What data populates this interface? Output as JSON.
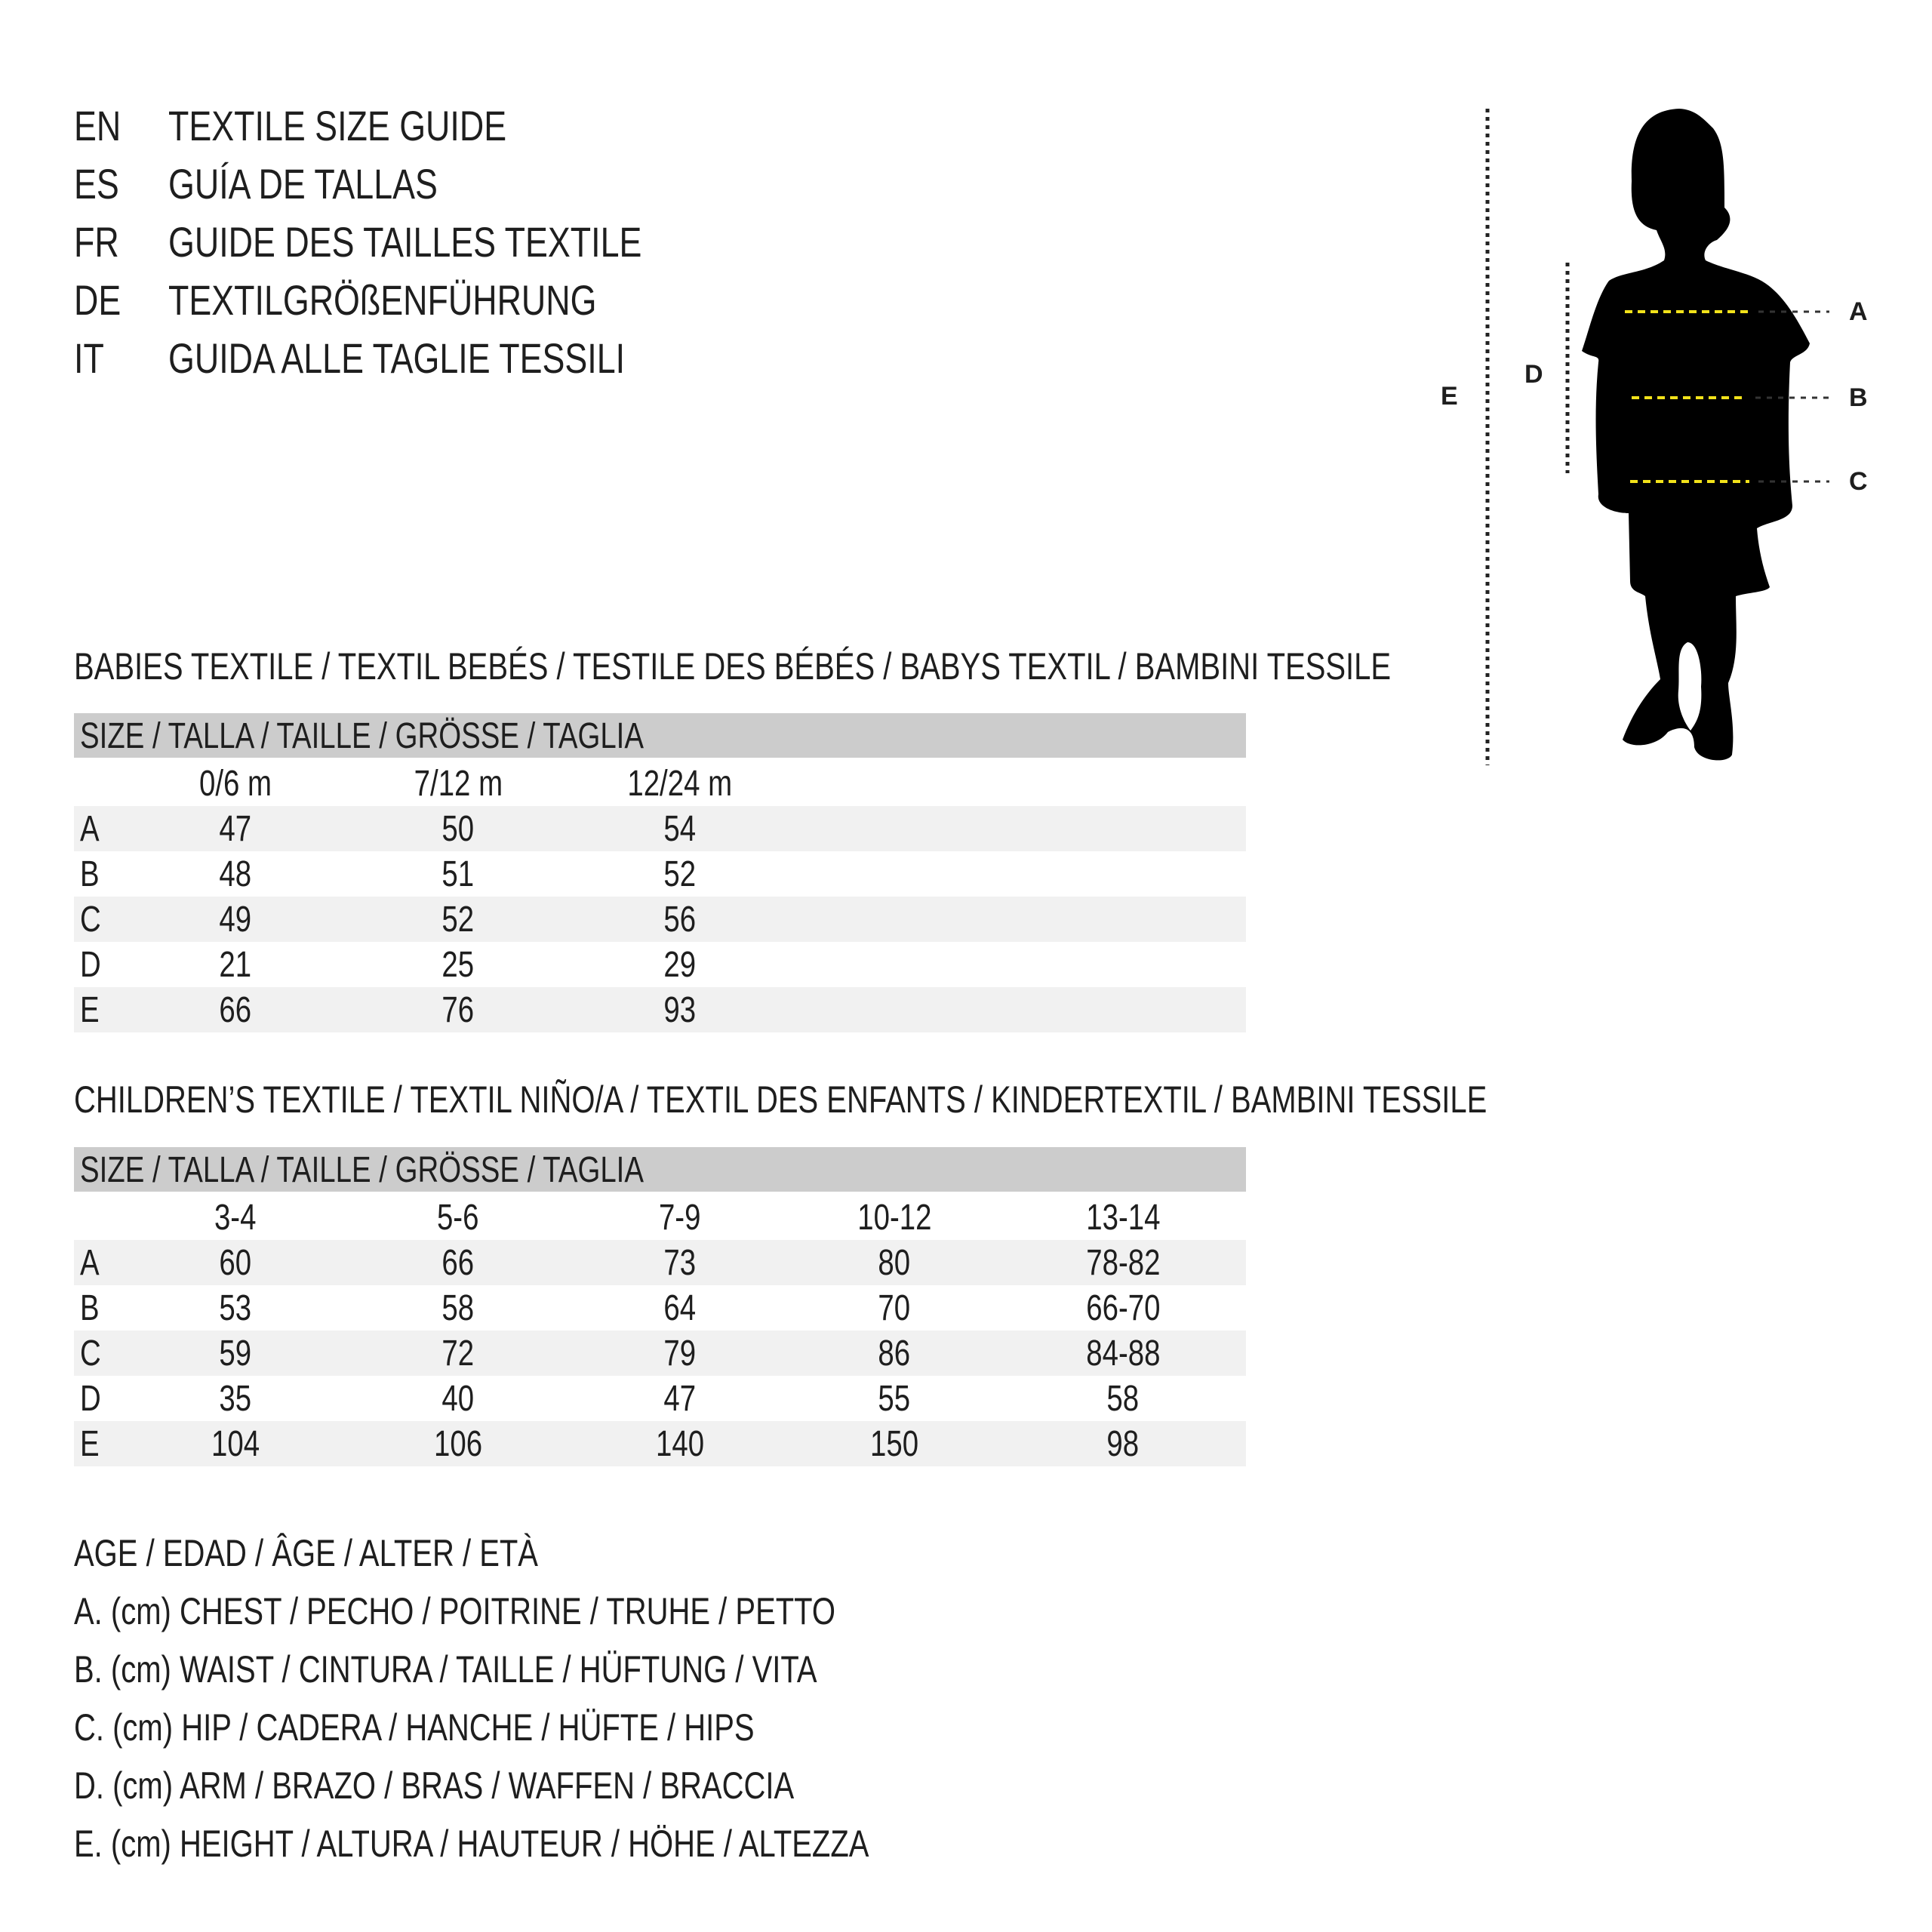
{
  "titles": [
    {
      "code": "EN",
      "text": "TEXTILE SIZE GUIDE"
    },
    {
      "code": "ES",
      "text": "GUÍA DE TALLAS"
    },
    {
      "code": "FR",
      "text": "GUIDE DES TAILLES TEXTILE"
    },
    {
      "code": "DE",
      "text": "TEXTILGRÖßENFÜHRUNG"
    },
    {
      "code": "IT",
      "text": "GUIDA ALLE TAGLIE TESSILI"
    }
  ],
  "babies": {
    "heading": "BABIES TEXTILE / TEXTIL BEBÉS / TESTILE DES BÉBÉS / BABYS TEXTIL / BAMBINI TESSILE",
    "size_header": "SIZE / TALLA / TAILLE / GRÖSSE / TAGLIA",
    "columns": [
      "0/6 m",
      "7/12 m",
      "12/24 m"
    ],
    "rows": [
      {
        "label": "A",
        "values": [
          "47",
          "50",
          "54"
        ]
      },
      {
        "label": "B",
        "values": [
          "48",
          "51",
          "52"
        ]
      },
      {
        "label": "C",
        "values": [
          "49",
          "52",
          "56"
        ]
      },
      {
        "label": "D",
        "values": [
          "21",
          "25",
          "29"
        ]
      },
      {
        "label": "E",
        "values": [
          "66",
          "76",
          "93"
        ]
      }
    ]
  },
  "children": {
    "heading": "CHILDREN’S TEXTILE / TEXTIL NIÑO/A / TEXTIL DES ENFANTS / KINDERTEXTIL / BAMBINI TESSILE",
    "size_header": "SIZE / TALLA / TAILLE / GRÖSSE / TAGLIA",
    "columns": [
      "3-4",
      "5-6",
      "7-9",
      "10-12",
      "13-14"
    ],
    "rows": [
      {
        "label": "A",
        "values": [
          "60",
          "66",
          "73",
          "80",
          "78-82"
        ]
      },
      {
        "label": "B",
        "values": [
          "53",
          "58",
          "64",
          "70",
          "66-70"
        ]
      },
      {
        "label": "C",
        "values": [
          "59",
          "72",
          "79",
          "86",
          "84-88"
        ]
      },
      {
        "label": "D",
        "values": [
          "35",
          "40",
          "47",
          "55",
          "58"
        ]
      },
      {
        "label": "E",
        "values": [
          "104",
          "106",
          "140",
          "150",
          "98"
        ]
      }
    ]
  },
  "legend": [
    "AGE / EDAD / ÂGE / ALTER / ETÀ",
    "A. (cm) CHEST / PECHO / POITRINE / TRUHE / PETTO",
    "B. (cm) WAIST / CINTURA / TAILLE / HÜFTUNG / VITA",
    "C. (cm) HIP / CADERA / HANCHE / HÜFTE / HIPS",
    "D. (cm) ARM / BRAZO / BRAS / WAFFEN / BRACCIA",
    "E. (cm) HEIGHT / ALTURA / HAUTEUR / HÖHE / ALTEZZA"
  ],
  "figure": {
    "labels": {
      "A": "A",
      "B": "B",
      "C": "C",
      "D": "D",
      "E": "E"
    },
    "colors": {
      "measure_line": "#f2e21a",
      "silhouette": "#000000",
      "text": "#1e1e1e",
      "header_bg": "#cccccc",
      "row_shade": "#f1f1f1"
    }
  }
}
